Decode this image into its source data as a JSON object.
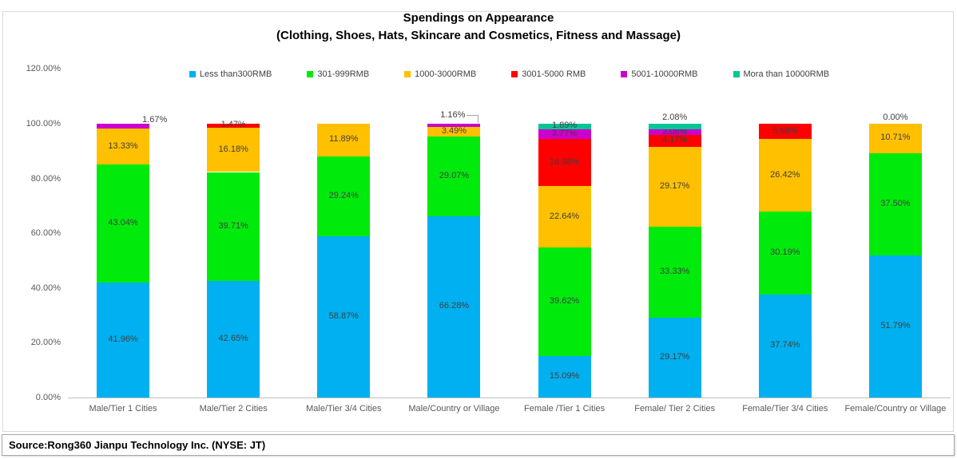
{
  "title": {
    "line1": "Spendings on Appearance",
    "line2": "(Clothing, Shoes, Hats, Skincare and Cosmetics, Fitness and Massage)"
  },
  "source": "Source:Rong360 Jianpu Technology Inc.  (NYSE: JT)",
  "chart_data": {
    "type": "bar",
    "stacked": true,
    "title": "Spendings on Appearance (Clothing, Shoes, Hats, Skincare and Cosmetics, Fitness and Massage)",
    "xlabel": "",
    "ylabel": "",
    "ylim": [
      0,
      120
    ],
    "grid": false,
    "legend_position": "top",
    "value_format": "percent-2dp",
    "yticks": [
      {
        "value": 0,
        "label": "0.00%"
      },
      {
        "value": 20,
        "label": "20.00%"
      },
      {
        "value": 40,
        "label": "40.00%"
      },
      {
        "value": 60,
        "label": "60.00%"
      },
      {
        "value": 80,
        "label": "80.00%"
      },
      {
        "value": 100,
        "label": "100.00%"
      },
      {
        "value": 120,
        "label": "120.00%"
      }
    ],
    "categories": [
      "Male/Tier 1 Cities",
      "Male/Tier 2 Cities",
      "Male/Tier 3/4 Cities",
      "Male/Country or Village",
      "Female /Tier 1 Cities",
      "Female/ Tier 2 Cities",
      "Female/Tier 3/4 Cities",
      "Female/Country or Village"
    ],
    "series": [
      {
        "name": "Less than300RMB",
        "color": "#00B0F0",
        "values": [
          41.96,
          42.65,
          58.87,
          66.28,
          15.09,
          29.17,
          37.74,
          51.79
        ]
      },
      {
        "name": "301-999RMB",
        "color": "#00EB0C",
        "values": [
          43.04,
          39.71,
          29.24,
          29.07,
          39.62,
          33.33,
          30.19,
          37.5
        ]
      },
      {
        "name": "1000-3000RMB",
        "color": "#FFC000",
        "values": [
          13.33,
          16.18,
          11.89,
          3.49,
          22.64,
          29.17,
          26.42,
          10.71
        ]
      },
      {
        "name": "3001-5000 RMB",
        "color": "#FF0000",
        "values": [
          0,
          1.47,
          0,
          0,
          16.98,
          4.17,
          5.66,
          0
        ]
      },
      {
        "name": "5001-10000RMB",
        "color": "#CC00CC",
        "values": [
          1.67,
          0,
          0,
          1.16,
          3.77,
          2.08,
          0,
          0
        ]
      },
      {
        "name": "Mora than 10000RMB",
        "color": "#00C795",
        "values": [
          0,
          0,
          0,
          0,
          1.89,
          2.08,
          0,
          0
        ]
      }
    ],
    "outside_labels": [
      {
        "category": 0,
        "series": 4,
        "mode": "right",
        "text": "1.67%"
      },
      {
        "category": 3,
        "series": 4,
        "mode": "callout",
        "text": "1.16%"
      },
      {
        "category": 5,
        "series": 5,
        "mode": "above",
        "text": "2.08%"
      },
      {
        "category": 7,
        "series": 5,
        "mode": "above",
        "text": "0.00%"
      }
    ]
  }
}
